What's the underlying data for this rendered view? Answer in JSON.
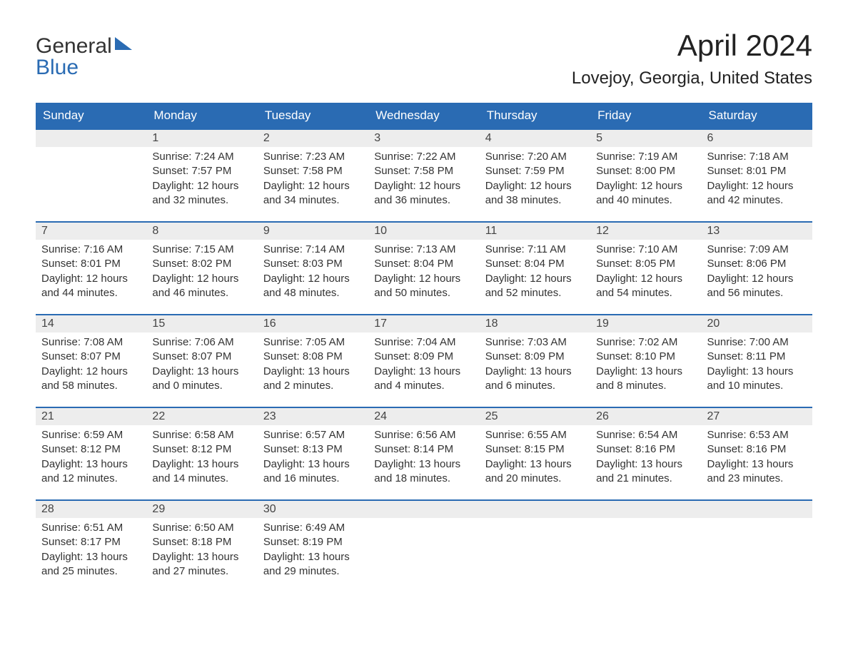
{
  "brand": {
    "word1": "General",
    "word2": "Blue"
  },
  "title": "April 2024",
  "location": "Lovejoy, Georgia, United States",
  "colors": {
    "header_bg": "#2a6bb3",
    "header_text": "#ffffff",
    "daynum_bg": "#ededed",
    "row_border": "#2a6bb3",
    "text": "#333333",
    "background": "#ffffff"
  },
  "layout": {
    "columns": 7,
    "rows": 5,
    "start_offset": 1,
    "title_fontsize": 42,
    "location_fontsize": 24,
    "header_fontsize": 17,
    "body_fontsize": 15
  },
  "weekdays": [
    "Sunday",
    "Monday",
    "Tuesday",
    "Wednesday",
    "Thursday",
    "Friday",
    "Saturday"
  ],
  "days": [
    {
      "n": 1,
      "sunrise": "7:24 AM",
      "sunset": "7:57 PM",
      "daylight": "12 hours and 32 minutes."
    },
    {
      "n": 2,
      "sunrise": "7:23 AM",
      "sunset": "7:58 PM",
      "daylight": "12 hours and 34 minutes."
    },
    {
      "n": 3,
      "sunrise": "7:22 AM",
      "sunset": "7:58 PM",
      "daylight": "12 hours and 36 minutes."
    },
    {
      "n": 4,
      "sunrise": "7:20 AM",
      "sunset": "7:59 PM",
      "daylight": "12 hours and 38 minutes."
    },
    {
      "n": 5,
      "sunrise": "7:19 AM",
      "sunset": "8:00 PM",
      "daylight": "12 hours and 40 minutes."
    },
    {
      "n": 6,
      "sunrise": "7:18 AM",
      "sunset": "8:01 PM",
      "daylight": "12 hours and 42 minutes."
    },
    {
      "n": 7,
      "sunrise": "7:16 AM",
      "sunset": "8:01 PM",
      "daylight": "12 hours and 44 minutes."
    },
    {
      "n": 8,
      "sunrise": "7:15 AM",
      "sunset": "8:02 PM",
      "daylight": "12 hours and 46 minutes."
    },
    {
      "n": 9,
      "sunrise": "7:14 AM",
      "sunset": "8:03 PM",
      "daylight": "12 hours and 48 minutes."
    },
    {
      "n": 10,
      "sunrise": "7:13 AM",
      "sunset": "8:04 PM",
      "daylight": "12 hours and 50 minutes."
    },
    {
      "n": 11,
      "sunrise": "7:11 AM",
      "sunset": "8:04 PM",
      "daylight": "12 hours and 52 minutes."
    },
    {
      "n": 12,
      "sunrise": "7:10 AM",
      "sunset": "8:05 PM",
      "daylight": "12 hours and 54 minutes."
    },
    {
      "n": 13,
      "sunrise": "7:09 AM",
      "sunset": "8:06 PM",
      "daylight": "12 hours and 56 minutes."
    },
    {
      "n": 14,
      "sunrise": "7:08 AM",
      "sunset": "8:07 PM",
      "daylight": "12 hours and 58 minutes."
    },
    {
      "n": 15,
      "sunrise": "7:06 AM",
      "sunset": "8:07 PM",
      "daylight": "13 hours and 0 minutes."
    },
    {
      "n": 16,
      "sunrise": "7:05 AM",
      "sunset": "8:08 PM",
      "daylight": "13 hours and 2 minutes."
    },
    {
      "n": 17,
      "sunrise": "7:04 AM",
      "sunset": "8:09 PM",
      "daylight": "13 hours and 4 minutes."
    },
    {
      "n": 18,
      "sunrise": "7:03 AM",
      "sunset": "8:09 PM",
      "daylight": "13 hours and 6 minutes."
    },
    {
      "n": 19,
      "sunrise": "7:02 AM",
      "sunset": "8:10 PM",
      "daylight": "13 hours and 8 minutes."
    },
    {
      "n": 20,
      "sunrise": "7:00 AM",
      "sunset": "8:11 PM",
      "daylight": "13 hours and 10 minutes."
    },
    {
      "n": 21,
      "sunrise": "6:59 AM",
      "sunset": "8:12 PM",
      "daylight": "13 hours and 12 minutes."
    },
    {
      "n": 22,
      "sunrise": "6:58 AM",
      "sunset": "8:12 PM",
      "daylight": "13 hours and 14 minutes."
    },
    {
      "n": 23,
      "sunrise": "6:57 AM",
      "sunset": "8:13 PM",
      "daylight": "13 hours and 16 minutes."
    },
    {
      "n": 24,
      "sunrise": "6:56 AM",
      "sunset": "8:14 PM",
      "daylight": "13 hours and 18 minutes."
    },
    {
      "n": 25,
      "sunrise": "6:55 AM",
      "sunset": "8:15 PM",
      "daylight": "13 hours and 20 minutes."
    },
    {
      "n": 26,
      "sunrise": "6:54 AM",
      "sunset": "8:16 PM",
      "daylight": "13 hours and 21 minutes."
    },
    {
      "n": 27,
      "sunrise": "6:53 AM",
      "sunset": "8:16 PM",
      "daylight": "13 hours and 23 minutes."
    },
    {
      "n": 28,
      "sunrise": "6:51 AM",
      "sunset": "8:17 PM",
      "daylight": "13 hours and 25 minutes."
    },
    {
      "n": 29,
      "sunrise": "6:50 AM",
      "sunset": "8:18 PM",
      "daylight": "13 hours and 27 minutes."
    },
    {
      "n": 30,
      "sunrise": "6:49 AM",
      "sunset": "8:19 PM",
      "daylight": "13 hours and 29 minutes."
    }
  ],
  "labels": {
    "sunrise": "Sunrise: ",
    "sunset": "Sunset: ",
    "daylight": "Daylight: "
  }
}
